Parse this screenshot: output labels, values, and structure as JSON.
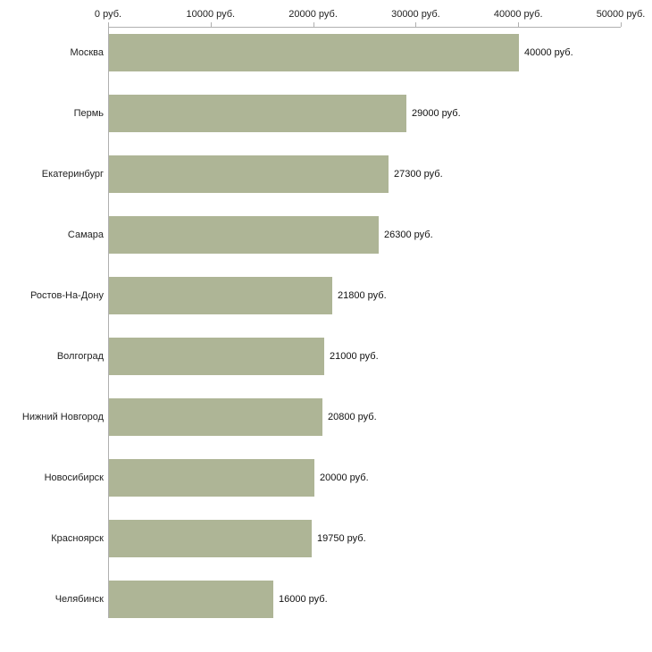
{
  "chart_data": {
    "type": "bar",
    "orientation": "horizontal",
    "title": "",
    "xlabel": "",
    "ylabel": "",
    "xlim": [
      0,
      50000
    ],
    "grid": false,
    "legend": false,
    "bar_color": "#aeb596",
    "axis_color": "#b0b0b0",
    "categories": [
      "Москва",
      "Пермь",
      "Екатеринбург",
      "Самара",
      "Ростов-На-Дону",
      "Волгоград",
      "Нижний Новгород",
      "Новосибирск",
      "Красноярск",
      "Челябинск"
    ],
    "values": [
      40000,
      29000,
      27300,
      26300,
      21800,
      21000,
      20800,
      20000,
      19750,
      16000
    ],
    "value_labels": [
      "40000 руб.",
      "29000 руб.",
      "27300 руб.",
      "26300 руб.",
      "21800 руб.",
      "21000 руб.",
      "20800 руб.",
      "20000 руб.",
      "19750 руб.",
      "16000 руб."
    ],
    "x_ticks": [
      0,
      10000,
      20000,
      30000,
      40000,
      50000
    ],
    "x_tick_labels": [
      "0 руб.",
      "10000 руб.",
      "20000 руб.",
      "30000 руб.",
      "40000 руб.",
      "50000 руб."
    ]
  }
}
